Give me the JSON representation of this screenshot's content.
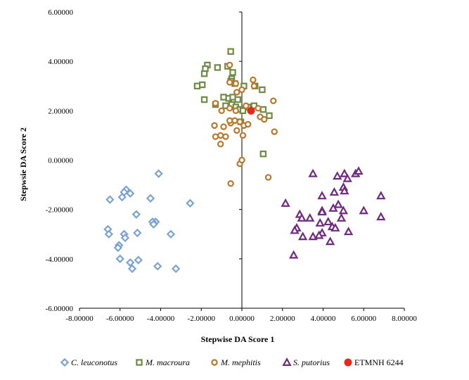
{
  "chart_data": {
    "type": "scatter",
    "title": "",
    "xlabel": "Stepwise DA Score 1",
    "ylabel": "Stepwsie DA Score 2",
    "xlim": [
      -8,
      8
    ],
    "ylim": [
      -6,
      6
    ],
    "x_ticks": [
      -8,
      -6,
      -4,
      -2,
      0,
      2,
      4,
      6,
      8
    ],
    "y_ticks": [
      -6,
      -4,
      -2,
      0,
      2,
      4,
      6
    ],
    "x_tick_labels": [
      "-8.00000",
      "-6.00000",
      "-4.00000",
      "-2.00000",
      "0.00000",
      "2.00000",
      "4.00000",
      "6.00000",
      "8.00000"
    ],
    "y_tick_labels": [
      "-6.00000",
      "-4.00000",
      "-2.00000",
      "0.00000",
      "2.00000",
      "4.00000",
      "6.00000"
    ],
    "grid": false,
    "legend_position": "bottom",
    "series": [
      {
        "name": "C. leuconotus",
        "italic": true,
        "marker": "diamond",
        "color": "#7BA3CF",
        "points": [
          [
            -4.1,
            -0.55
          ],
          [
            -2.55,
            -1.75
          ],
          [
            -6.5,
            -1.6
          ],
          [
            -5.7,
            -1.2
          ],
          [
            -5.8,
            -1.3
          ],
          [
            -5.9,
            -1.5
          ],
          [
            -5.5,
            -1.35
          ],
          [
            -4.5,
            -1.55
          ],
          [
            -5.2,
            -2.2
          ],
          [
            -4.25,
            -2.5
          ],
          [
            -4.4,
            -2.5
          ],
          [
            -4.35,
            -2.6
          ],
          [
            -6.6,
            -2.8
          ],
          [
            -6.55,
            -3.0
          ],
          [
            -5.8,
            -3.0
          ],
          [
            -5.75,
            -3.15
          ],
          [
            -5.15,
            -2.95
          ],
          [
            -3.5,
            -3.0
          ],
          [
            -6.05,
            -3.45
          ],
          [
            -6.1,
            -3.55
          ],
          [
            -6.0,
            -4.0
          ],
          [
            -5.5,
            -4.15
          ],
          [
            -5.1,
            -4.05
          ],
          [
            -5.4,
            -4.4
          ],
          [
            -4.15,
            -4.3
          ],
          [
            -3.25,
            -4.4
          ]
        ]
      },
      {
        "name": "M. macroura",
        "italic": true,
        "marker": "square",
        "color": "#6E8A45",
        "points": [
          [
            -0.55,
            4.4
          ],
          [
            -1.7,
            3.85
          ],
          [
            -1.8,
            3.7
          ],
          [
            -1.85,
            3.5
          ],
          [
            -1.2,
            3.75
          ],
          [
            -0.7,
            3.8
          ],
          [
            -0.45,
            3.55
          ],
          [
            -0.5,
            3.3
          ],
          [
            -0.55,
            3.2
          ],
          [
            -2.2,
            3.0
          ],
          [
            -1.95,
            3.05
          ],
          [
            -0.35,
            3.1
          ],
          [
            0.1,
            3.0
          ],
          [
            0.65,
            3.0
          ],
          [
            1.0,
            2.85
          ],
          [
            -1.85,
            2.45
          ],
          [
            -1.3,
            2.25
          ],
          [
            -0.9,
            2.55
          ],
          [
            -0.65,
            2.5
          ],
          [
            -0.45,
            2.55
          ],
          [
            -0.2,
            2.45
          ],
          [
            -0.8,
            2.2
          ],
          [
            -0.5,
            2.25
          ],
          [
            -0.3,
            2.15
          ],
          [
            -0.1,
            2.05
          ],
          [
            0.05,
            2.0
          ],
          [
            0.3,
            2.15
          ],
          [
            0.6,
            2.2
          ],
          [
            1.05,
            2.05
          ],
          [
            1.35,
            1.8
          ],
          [
            -0.05,
            1.55
          ],
          [
            1.05,
            0.25
          ]
        ]
      },
      {
        "name": "M. mephitis",
        "italic": true,
        "marker": "circle",
        "color": "#B8782C",
        "points": [
          [
            -0.6,
            3.85
          ],
          [
            -0.6,
            3.15
          ],
          [
            -0.3,
            3.1
          ],
          [
            0.55,
            3.25
          ],
          [
            0.6,
            3.0
          ],
          [
            -0.25,
            2.75
          ],
          [
            0.0,
            2.85
          ],
          [
            -1.3,
            2.3
          ],
          [
            -1.0,
            2.0
          ],
          [
            -0.6,
            2.1
          ],
          [
            -0.3,
            2.0
          ],
          [
            0.2,
            2.2
          ],
          [
            0.8,
            2.1
          ],
          [
            1.55,
            2.4
          ],
          [
            -0.9,
            1.35
          ],
          [
            -0.55,
            1.5
          ],
          [
            -0.35,
            1.6
          ],
          [
            -0.1,
            1.55
          ],
          [
            0.1,
            1.4
          ],
          [
            0.3,
            1.45
          ],
          [
            0.9,
            1.75
          ],
          [
            1.1,
            1.65
          ],
          [
            -1.35,
            1.4
          ],
          [
            -1.05,
            1.0
          ],
          [
            -0.8,
            0.95
          ],
          [
            -1.3,
            0.95
          ],
          [
            -1.05,
            0.65
          ],
          [
            -0.25,
            1.2
          ],
          [
            0.05,
            1.0
          ],
          [
            -0.1,
            -0.15
          ],
          [
            0.0,
            0.0
          ],
          [
            -0.55,
            -0.95
          ],
          [
            1.3,
            -0.7
          ],
          [
            1.6,
            1.15
          ],
          [
            -0.6,
            1.6
          ]
        ]
      },
      {
        "name": "S. putorius",
        "italic": true,
        "marker": "triangle",
        "color": "#6F2B7F",
        "points": [
          [
            3.5,
            -0.55
          ],
          [
            4.7,
            -0.65
          ],
          [
            5.05,
            -0.55
          ],
          [
            5.6,
            -0.55
          ],
          [
            5.75,
            -0.45
          ],
          [
            5.2,
            -0.75
          ],
          [
            5.0,
            -1.1
          ],
          [
            5.05,
            -1.25
          ],
          [
            4.55,
            -1.3
          ],
          [
            3.95,
            -1.45
          ],
          [
            6.85,
            -1.45
          ],
          [
            2.15,
            -1.75
          ],
          [
            4.75,
            -1.8
          ],
          [
            4.5,
            -1.95
          ],
          [
            3.95,
            -2.05
          ],
          [
            3.95,
            -2.1
          ],
          [
            5.0,
            -2.05
          ],
          [
            6.0,
            -2.05
          ],
          [
            2.85,
            -2.2
          ],
          [
            2.95,
            -2.35
          ],
          [
            3.35,
            -2.35
          ],
          [
            4.9,
            -2.35
          ],
          [
            6.85,
            -2.3
          ],
          [
            3.85,
            -2.55
          ],
          [
            4.25,
            -2.5
          ],
          [
            4.45,
            -2.7
          ],
          [
            4.6,
            -2.75
          ],
          [
            2.7,
            -2.75
          ],
          [
            2.6,
            -2.85
          ],
          [
            3.95,
            -2.95
          ],
          [
            5.25,
            -2.9
          ],
          [
            3.0,
            -3.1
          ],
          [
            3.5,
            -3.1
          ],
          [
            3.8,
            -3.05
          ],
          [
            4.35,
            -3.3
          ],
          [
            2.55,
            -3.85
          ]
        ]
      },
      {
        "name": "ETMNH 6244",
        "italic": false,
        "marker": "filled-circle",
        "color": "#E8281B",
        "points": [
          [
            0.45,
            2.0
          ]
        ]
      }
    ]
  }
}
